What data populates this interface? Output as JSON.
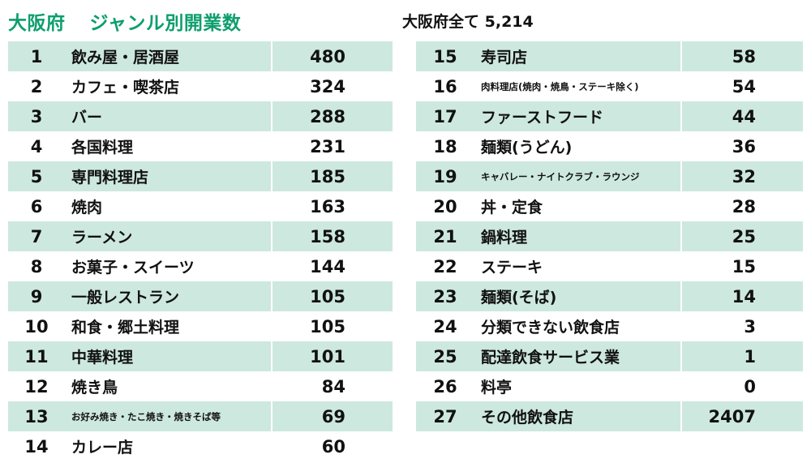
{
  "header": {
    "title_prefix": "大阪府",
    "title_main": "ジャンル別開業数",
    "total_label": "大阪府全て",
    "total_value": "5,214"
  },
  "rankings_left": [
    {
      "rank": "1",
      "genre": "飲み屋・居酒屋",
      "count": "480"
    },
    {
      "rank": "2",
      "genre": "カフェ・喫茶店",
      "count": "324"
    },
    {
      "rank": "3",
      "genre": "バー",
      "count": "288"
    },
    {
      "rank": "4",
      "genre": "各国料理",
      "count": "231"
    },
    {
      "rank": "5",
      "genre": "専門料理店",
      "count": "185"
    },
    {
      "rank": "6",
      "genre": "焼肉",
      "count": "163"
    },
    {
      "rank": "7",
      "genre": "ラーメン",
      "count": "158"
    },
    {
      "rank": "8",
      "genre": "お菓子・スイーツ",
      "count": "144"
    },
    {
      "rank": "9",
      "genre": "一般レストラン",
      "count": "105"
    },
    {
      "rank": "10",
      "genre": "和食・郷土料理",
      "count": "105"
    },
    {
      "rank": "11",
      "genre": "中華料理",
      "count": "101"
    },
    {
      "rank": "12",
      "genre": "焼き鳥",
      "count": "84"
    },
    {
      "rank": "13",
      "genre": "お好み焼き・たこ焼き・焼きそば等",
      "count": "69"
    },
    {
      "rank": "14",
      "genre": "カレー店",
      "count": "60"
    }
  ],
  "rankings_right": [
    {
      "rank": "15",
      "genre": "寿司店",
      "count": "58"
    },
    {
      "rank": "16",
      "genre": "肉料理店(焼肉・焼鳥・ステーキ除く)",
      "count": "54"
    },
    {
      "rank": "17",
      "genre": "ファーストフード",
      "count": "44"
    },
    {
      "rank": "18",
      "genre": "麺類(うどん)",
      "count": "36"
    },
    {
      "rank": "19",
      "genre": "キャバレー・ナイトクラブ・ラウンジ",
      "count": "32"
    },
    {
      "rank": "20",
      "genre": "丼・定食",
      "count": "28"
    },
    {
      "rank": "21",
      "genre": "鍋料理",
      "count": "25"
    },
    {
      "rank": "22",
      "genre": "ステーキ",
      "count": "15"
    },
    {
      "rank": "23",
      "genre": "麺類(そば)",
      "count": "14"
    },
    {
      "rank": "24",
      "genre": "分類できない飲食店",
      "count": "3"
    },
    {
      "rank": "25",
      "genre": "配達飲食サービス業",
      "count": "1"
    },
    {
      "rank": "26",
      "genre": "料亭",
      "count": "0"
    },
    {
      "rank": "27",
      "genre": "その他飲食店",
      "count": "2407"
    }
  ],
  "colors": {
    "title": "#0e9e6e",
    "row_shade": "#cde8df",
    "row_plain": "#ffffff"
  }
}
